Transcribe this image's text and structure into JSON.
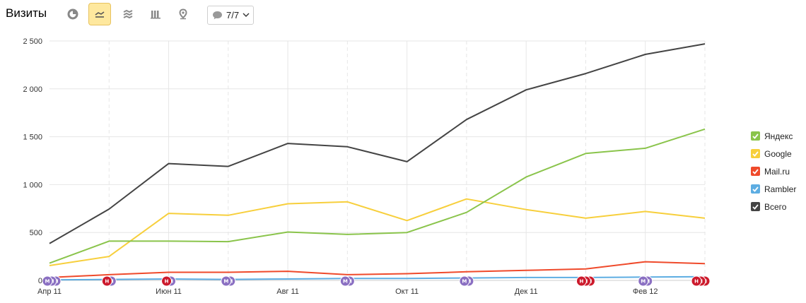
{
  "toolbar": {
    "title": "Визиты",
    "buttons": [
      {
        "name": "pie-chart-icon",
        "active": false
      },
      {
        "name": "line-chart-icon",
        "active": true
      },
      {
        "name": "area-chart-icon",
        "active": false
      },
      {
        "name": "bar-chart-icon",
        "active": false
      },
      {
        "name": "map-pin-icon",
        "active": false
      }
    ],
    "notes_label": "7/7"
  },
  "colors": {
    "yandex": "#8ac44b",
    "google": "#f7cf3c",
    "mailru": "#ef4a2b",
    "rambler": "#5dade2",
    "total": "#444444",
    "marker_m": "#8a6fc2",
    "marker_n": "#cc1a2c"
  },
  "chart_data": {
    "type": "line",
    "x": [
      "2011-04",
      "2011-05",
      "2011-06",
      "2011-07",
      "2011-08",
      "2011-09",
      "2011-10",
      "2011-11",
      "2011-12",
      "2012-01",
      "2012-02",
      "2012-03"
    ],
    "x_tick_labels": [
      "Апр 11",
      "Июн 11",
      "Авг 11",
      "Окт 11",
      "Дек 11",
      "Фев 12"
    ],
    "ylim": [
      0,
      2500
    ],
    "y_ticks": [
      "2 500",
      "2 000",
      "1 500",
      "1 000",
      "500",
      "0"
    ],
    "grid": true,
    "legend_position": "right",
    "series": [
      {
        "name": "Яндекс",
        "color": "#8ac44b",
        "values": [
          180,
          410,
          410,
          405,
          505,
          480,
          500,
          710,
          1080,
          1325,
          1380,
          1580
        ]
      },
      {
        "name": "Google",
        "color": "#f7cf3c",
        "values": [
          155,
          250,
          700,
          680,
          800,
          820,
          625,
          850,
          740,
          650,
          720,
          650
        ]
      },
      {
        "name": "Mail.ru",
        "color": "#ef4a2b",
        "values": [
          30,
          60,
          85,
          85,
          95,
          60,
          70,
          90,
          105,
          120,
          195,
          175
        ]
      },
      {
        "name": "Rambler",
        "color": "#5dade2",
        "values": [
          5,
          10,
          15,
          10,
          15,
          20,
          20,
          25,
          30,
          30,
          35,
          38
        ]
      },
      {
        "name": "Всего",
        "color": "#444444",
        "values": [
          385,
          745,
          1220,
          1190,
          1430,
          1395,
          1240,
          1680,
          1990,
          2160,
          2360,
          2470
        ]
      }
    ],
    "annotations": [
      {
        "index": 0,
        "letters": [
          "М",
          "М",
          "М"
        ],
        "kinds": [
          "m",
          "m",
          "m"
        ]
      },
      {
        "index": 1,
        "letters": [
          "Н",
          "М"
        ],
        "kinds": [
          "n",
          "m"
        ]
      },
      {
        "index": 2,
        "letters": [
          "Н",
          "М"
        ],
        "kinds": [
          "n",
          "m"
        ]
      },
      {
        "index": 3,
        "letters": [
          "М",
          "М"
        ],
        "kinds": [
          "m",
          "m"
        ]
      },
      {
        "index": 5,
        "letters": [
          "М",
          "М"
        ],
        "kinds": [
          "m",
          "m"
        ]
      },
      {
        "index": 7,
        "letters": [
          "М",
          "М"
        ],
        "kinds": [
          "m",
          "m"
        ]
      },
      {
        "index": 9,
        "letters": [
          "Н",
          "Н",
          "Н"
        ],
        "kinds": [
          "n",
          "n",
          "n"
        ]
      },
      {
        "index": 10,
        "letters": [
          "М",
          "М"
        ],
        "kinds": [
          "m",
          "m"
        ]
      },
      {
        "index": 11,
        "letters": [
          "Н",
          "Н",
          "Н"
        ],
        "kinds": [
          "n",
          "n",
          "n"
        ]
      }
    ]
  }
}
